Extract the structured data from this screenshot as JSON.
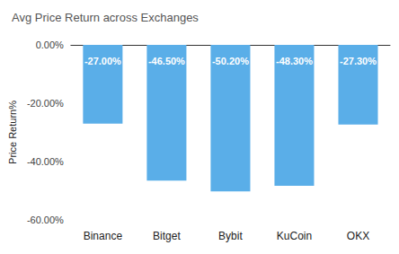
{
  "chart_data": {
    "type": "bar",
    "title": "Avg Price Return across Exchanges",
    "y_label": "Price Return%",
    "categories": [
      "Binance",
      "Bitget",
      "Bybit",
      "KuCoin",
      "OKX"
    ],
    "values": [
      -27.0,
      -46.5,
      -50.2,
      -48.3,
      -27.3
    ],
    "value_labels": [
      "-27.00%",
      "-46.50%",
      "-50.20%",
      "-48.30%",
      "-27.30%"
    ],
    "color": "#5aaee8",
    "ylim": [
      -60,
      0
    ],
    "yticks": [
      {
        "value": -60,
        "label": "-60.00%"
      },
      {
        "value": -40,
        "label": "-40.00%"
      },
      {
        "value": -20,
        "label": "-20.00%"
      },
      {
        "value": 0,
        "label": "0.00%"
      }
    ],
    "grid": false,
    "data_labels": true
  }
}
